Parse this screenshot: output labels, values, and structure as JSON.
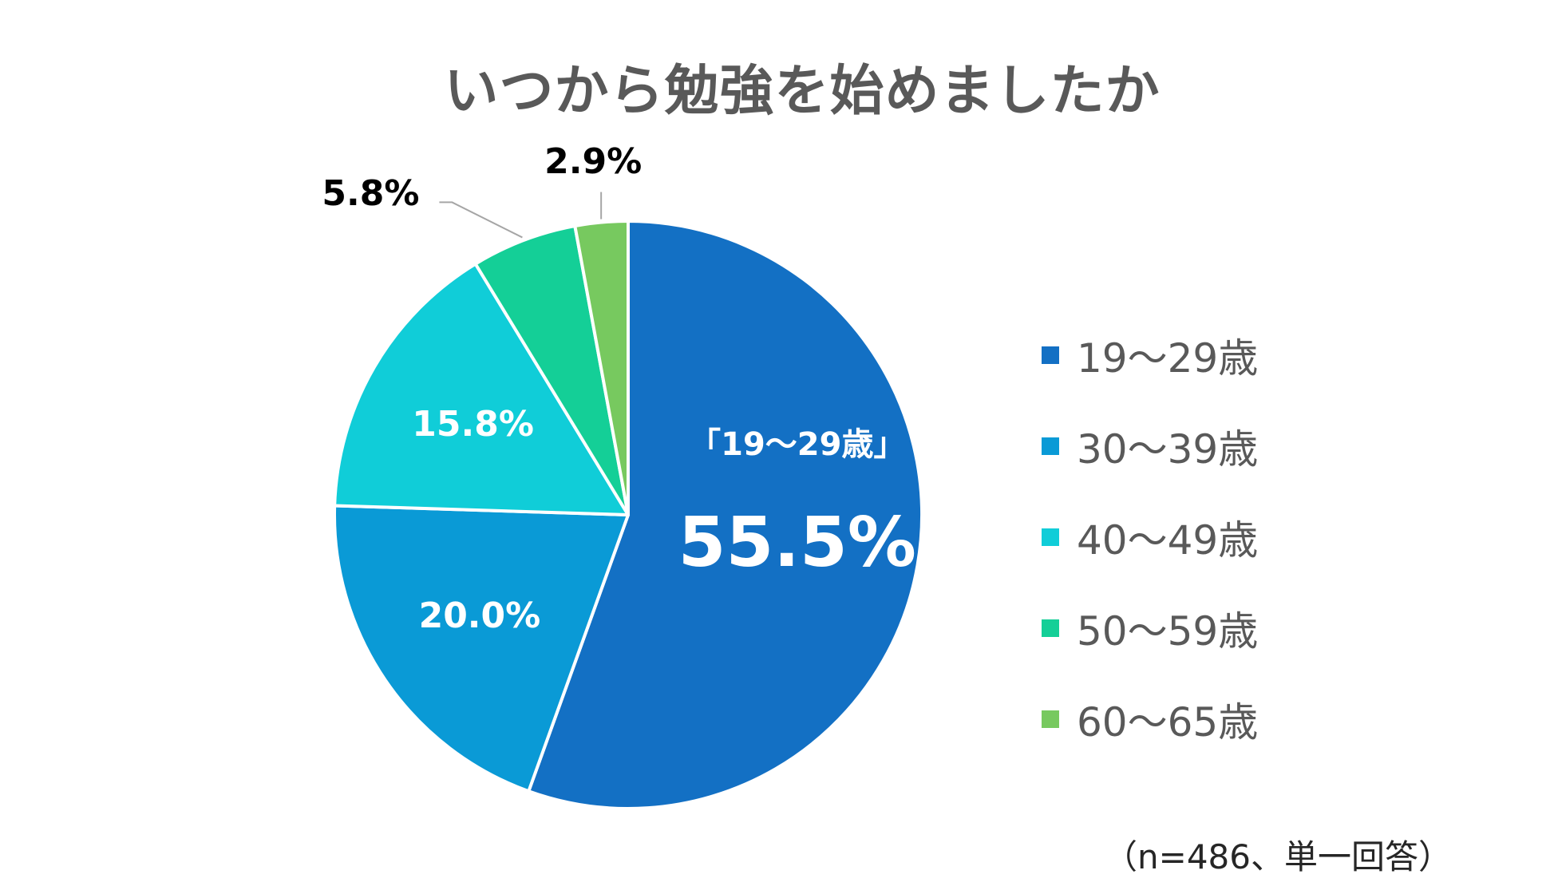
{
  "chart_data": {
    "type": "pie",
    "title": "いつから勉強を始めましたか",
    "categories": [
      "19～29歳",
      "30～39歳",
      "40～49歳",
      "50～59歳",
      "60～65歳"
    ],
    "values": [
      55.5,
      20.0,
      15.8,
      5.8,
      2.9
    ],
    "value_labels": [
      "55.5%",
      "20.0%",
      "15.8%",
      "5.8%",
      "2.9%"
    ],
    "colors": [
      "#1370c4",
      "#0a9ad6",
      "#10cdd8",
      "#14cf97",
      "#77c95f"
    ],
    "callout_label": "「19～29歳」",
    "legend_position": "right",
    "start_angle": "12 o'clock",
    "direction": "clockwise"
  },
  "note": "（n=486、単一回答）"
}
